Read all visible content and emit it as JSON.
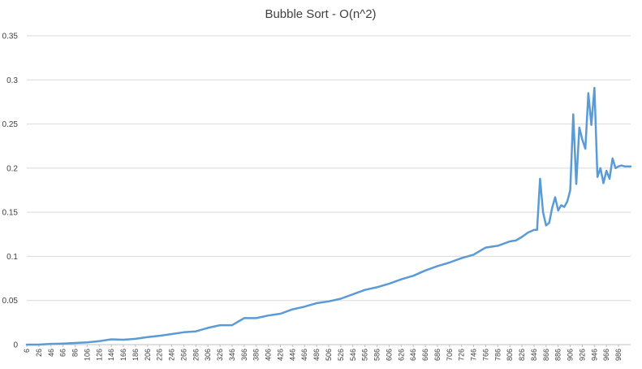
{
  "chart_data": {
    "type": "line",
    "title": "Bubble Sort - O(n^2)",
    "xlabel": "",
    "ylabel": "",
    "ylim": [
      0,
      0.35
    ],
    "yticks": [
      "0",
      "0.05",
      "0.1",
      "0.15",
      "0.2",
      "0.25",
      "0.3",
      "0.35"
    ],
    "xtick_labels": [
      "6",
      "26",
      "46",
      "66",
      "86",
      "106",
      "126",
      "146",
      "166",
      "186",
      "206",
      "226",
      "246",
      "266",
      "286",
      "306",
      "326",
      "346",
      "366",
      "386",
      "406",
      "426",
      "446",
      "466",
      "486",
      "506",
      "526",
      "546",
      "566",
      "586",
      "606",
      "626",
      "646",
      "666",
      "686",
      "706",
      "726",
      "746",
      "766",
      "786",
      "806",
      "826",
      "846",
      "866",
      "886",
      "906",
      "926",
      "946",
      "966",
      "986"
    ],
    "grid": true,
    "legend": "none",
    "color": "#5b9bd5",
    "series": [
      {
        "x": [
          6,
          26,
          46,
          66,
          86,
          106,
          126,
          146,
          166,
          186,
          206,
          226,
          246,
          266,
          286,
          306,
          326,
          346,
          366,
          386,
          406,
          426,
          446,
          466,
          486,
          506,
          526,
          546,
          566,
          586,
          606,
          626,
          646,
          666,
          686,
          706,
          726,
          746,
          766,
          786,
          806,
          816,
          826,
          836,
          846,
          851,
          856,
          861,
          866,
          871,
          876,
          881,
          886,
          891,
          896,
          901,
          906,
          911,
          916,
          921,
          926,
          931,
          936,
          941,
          946,
          951,
          956,
          961,
          966,
          971,
          976,
          981,
          986,
          991,
          996,
          1001,
          1006
        ],
        "values": [
          0,
          0,
          0.0008,
          0.0012,
          0.0018,
          0.0025,
          0.004,
          0.006,
          0.0055,
          0.0065,
          0.0085,
          0.01,
          0.012,
          0.014,
          0.015,
          0.019,
          0.022,
          0.022,
          0.03,
          0.03,
          0.033,
          0.035,
          0.04,
          0.043,
          0.047,
          0.049,
          0.052,
          0.057,
          0.062,
          0.065,
          0.069,
          0.074,
          0.078,
          0.084,
          0.089,
          0.093,
          0.098,
          0.102,
          0.11,
          0.112,
          0.117,
          0.118,
          0.122,
          0.127,
          0.13,
          0.13,
          0.188,
          0.15,
          0.135,
          0.138,
          0.155,
          0.167,
          0.152,
          0.158,
          0.156,
          0.162,
          0.175,
          0.261,
          0.182,
          0.246,
          0.232,
          0.222,
          0.285,
          0.249,
          0.291,
          0.19,
          0.2,
          0.183,
          0.197,
          0.188,
          0.211,
          0.2,
          0.202,
          0.203,
          0.202,
          0.202,
          0.202
        ]
      }
    ]
  }
}
